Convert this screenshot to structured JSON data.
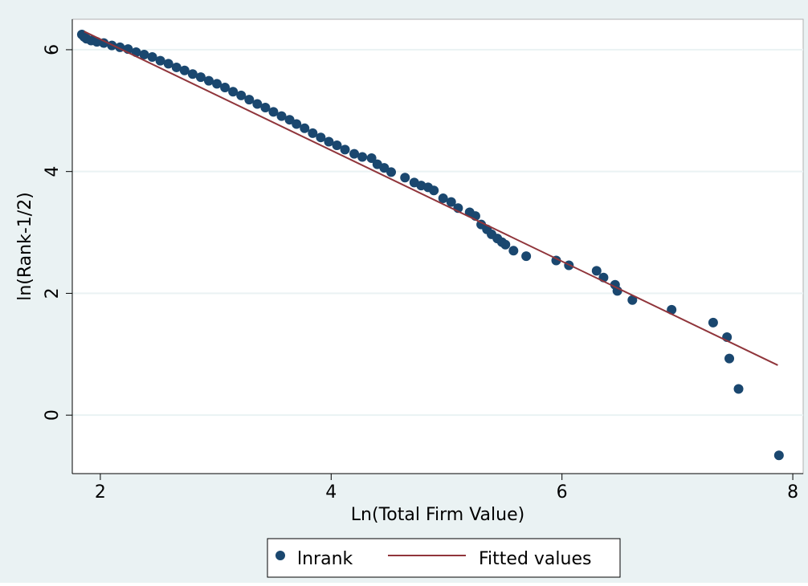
{
  "chart_data": {
    "type": "scatter",
    "x_label": "Ln(Total Firm Value)",
    "y_label": "ln(Rank-1/2)",
    "xlim": [
      1.757,
      8.09
    ],
    "ylim": [
      -0.96,
      6.5
    ],
    "xticks": [
      2,
      4,
      6,
      8
    ],
    "yticks": [
      0,
      2,
      4,
      6
    ],
    "grid": true,
    "legend": "bottom",
    "series": [
      {
        "name": "lnrank",
        "type": "scatter",
        "color": "#1a476f",
        "x": [
          1.84,
          1.86,
          1.88,
          1.92,
          1.97,
          2.03,
          2.1,
          2.17,
          2.24,
          2.31,
          2.38,
          2.45,
          2.52,
          2.59,
          2.66,
          2.73,
          2.8,
          2.87,
          2.94,
          3.01,
          3.08,
          3.15,
          3.22,
          3.29,
          3.36,
          3.43,
          3.5,
          3.57,
          3.64,
          3.7,
          3.77,
          3.84,
          3.91,
          3.98,
          4.05,
          4.12,
          4.2,
          4.27,
          4.35,
          4.4,
          4.46,
          4.52,
          4.64,
          4.72,
          4.78,
          4.84,
          4.89,
          4.97,
          5.04,
          5.1,
          5.2,
          5.25,
          5.3,
          5.35,
          5.39,
          5.44,
          5.48,
          5.51,
          5.58,
          5.69,
          5.95,
          6.06,
          6.3,
          6.36,
          6.46,
          6.48,
          6.61,
          6.95,
          7.31,
          7.43,
          7.45,
          7.53,
          7.88
        ],
        "values": [
          6.25,
          6.21,
          6.18,
          6.15,
          6.13,
          6.11,
          6.07,
          6.04,
          6.01,
          5.96,
          5.92,
          5.88,
          5.82,
          5.77,
          5.71,
          5.66,
          5.6,
          5.55,
          5.49,
          5.44,
          5.38,
          5.31,
          5.25,
          5.18,
          5.11,
          5.05,
          4.98,
          4.91,
          4.85,
          4.78,
          4.71,
          4.63,
          4.56,
          4.49,
          4.43,
          4.36,
          4.29,
          4.24,
          4.22,
          4.12,
          4.06,
          3.99,
          3.9,
          3.82,
          3.77,
          3.74,
          3.69,
          3.56,
          3.5,
          3.4,
          3.33,
          3.27,
          3.13,
          3.05,
          2.97,
          2.9,
          2.84,
          2.8,
          2.7,
          2.61,
          2.54,
          2.46,
          2.37,
          2.26,
          2.14,
          2.04,
          1.89,
          1.73,
          1.52,
          1.28,
          0.93,
          0.43,
          -0.66
        ]
      },
      {
        "name": "Fitted values",
        "type": "line",
        "color": "#90353b",
        "x": [
          1.86,
          7.87
        ],
        "values": [
          6.3,
          0.82
        ]
      }
    ]
  }
}
